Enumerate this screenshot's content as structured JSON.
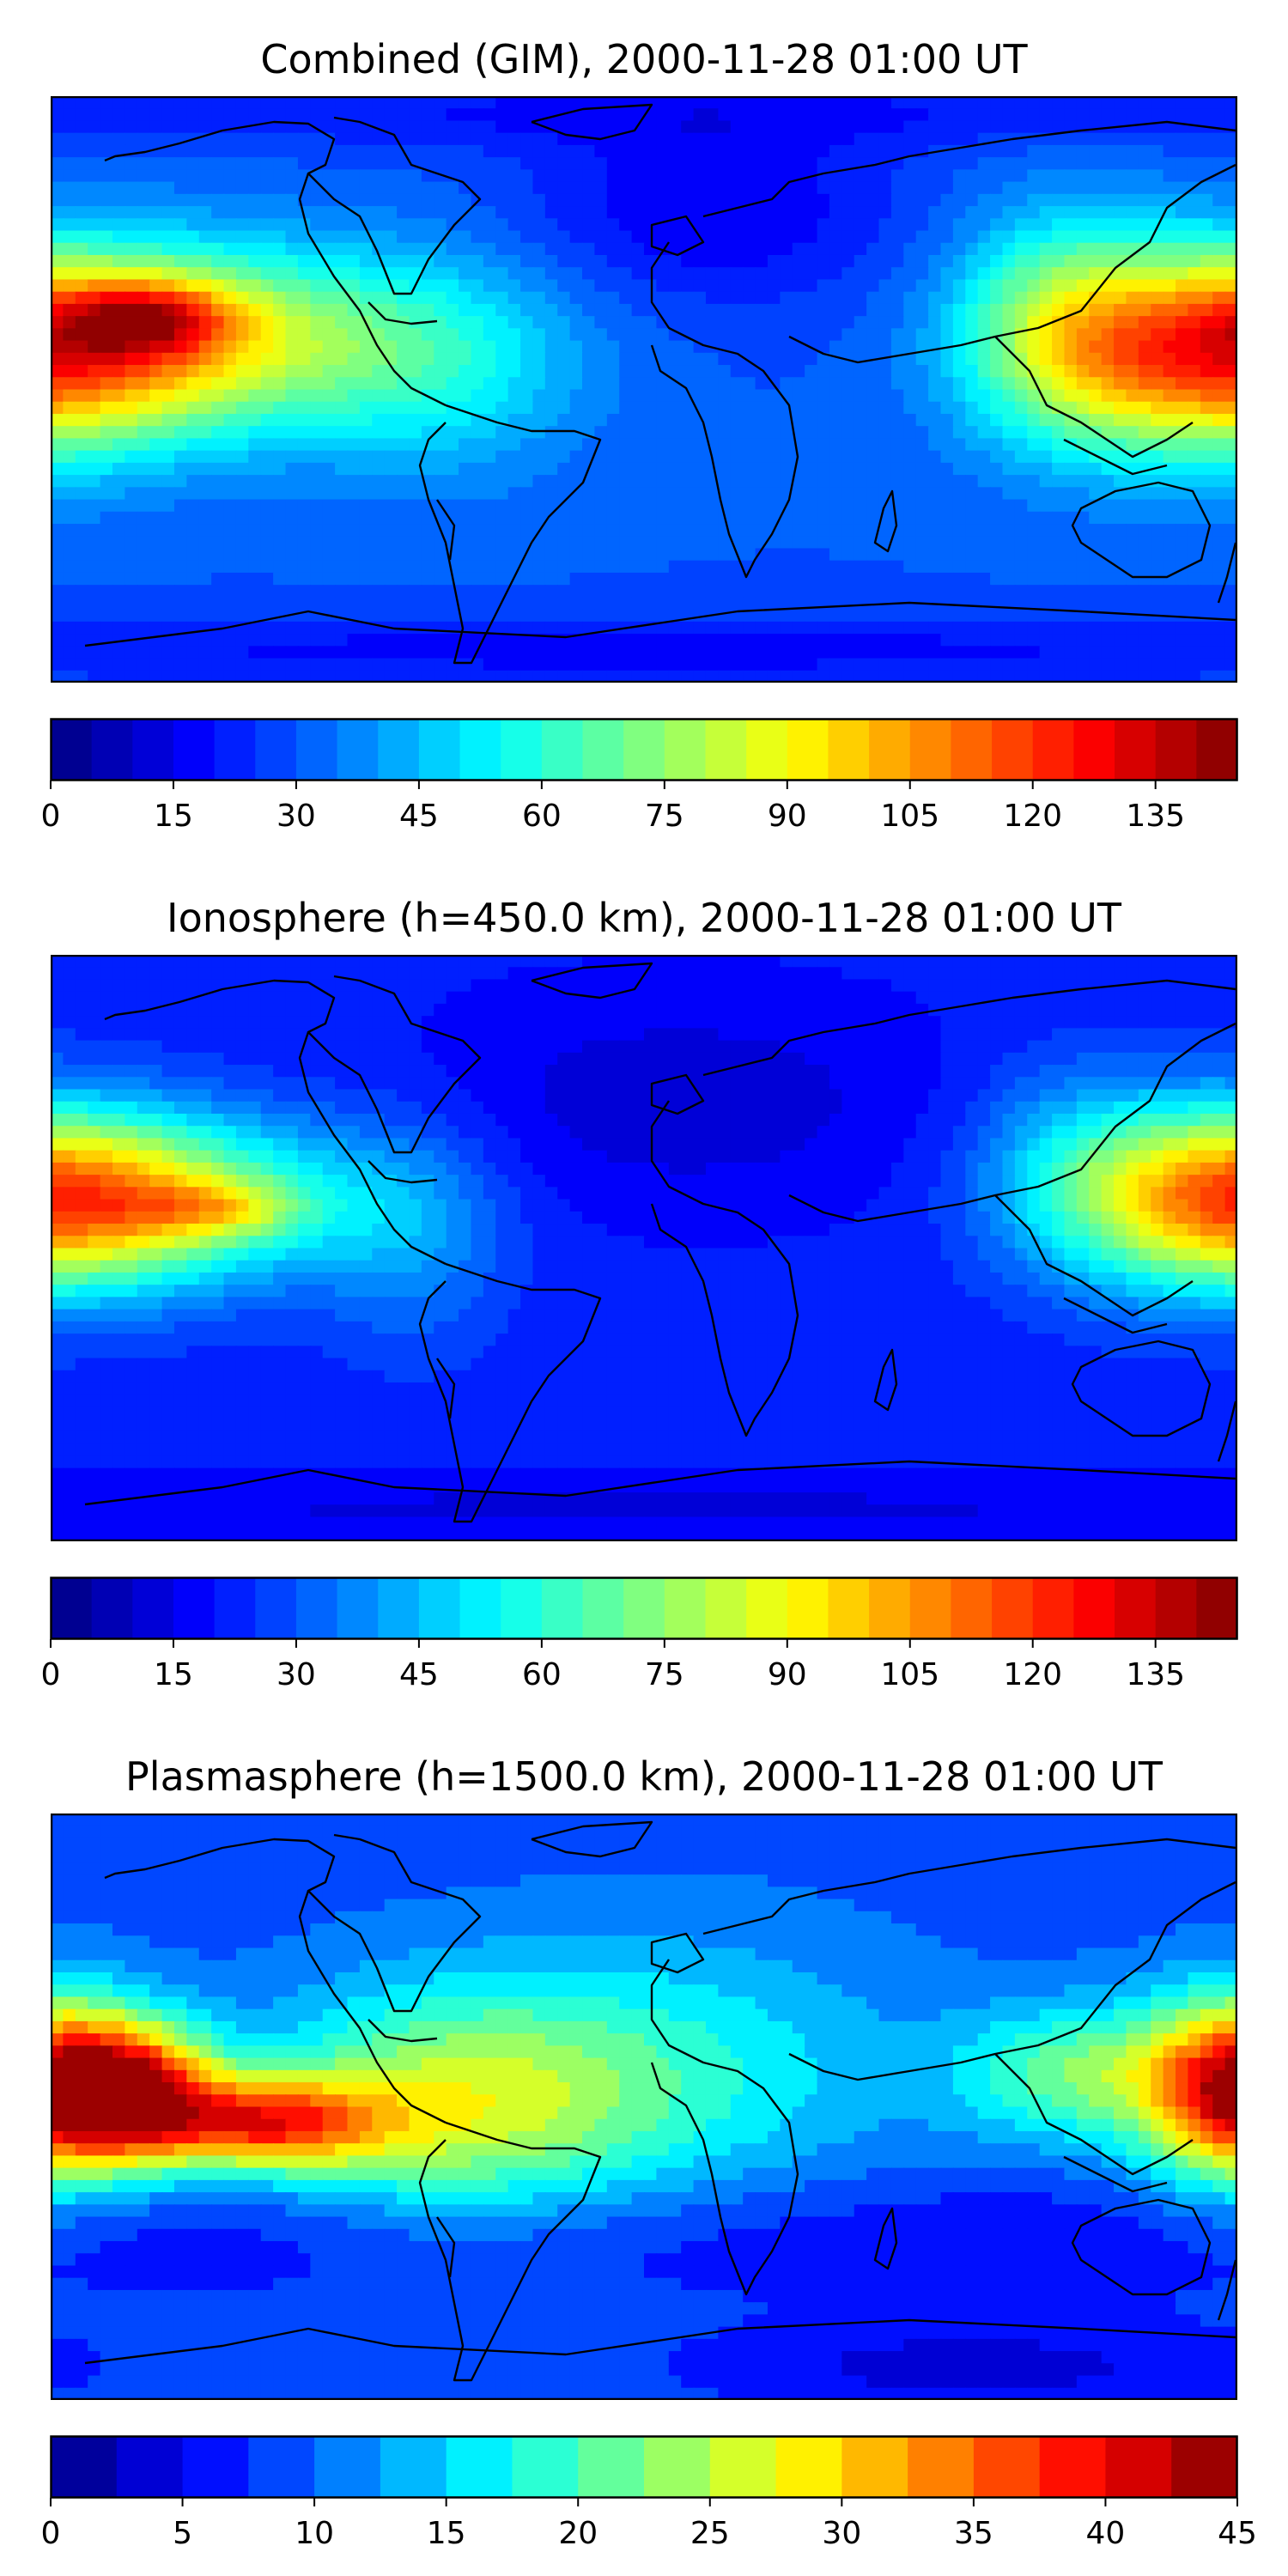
{
  "figure": {
    "panels": [
      {
        "id": "combined",
        "title": "Combined (GIM), 2000-11-28 01:00 UT",
        "colorbar": {
          "min": 0,
          "max": 145,
          "levels": 29,
          "colormap": "jet",
          "ticks": [
            "0",
            "15",
            "30",
            "45",
            "60",
            "75",
            "90",
            "105",
            "120",
            "135"
          ],
          "tick_values": [
            0,
            15,
            30,
            45,
            60,
            75,
            90,
            105,
            120,
            135
          ]
        },
        "base_value": 30,
        "blobs": [
          {
            "lon": -140,
            "lat": 15,
            "amp": 55,
            "sx": 55,
            "sy": 20
          },
          {
            "lon": -150,
            "lat": 22,
            "amp": 40,
            "sx": 18,
            "sy": 8
          },
          {
            "lon": -60,
            "lat": 5,
            "amp": 15,
            "sx": 30,
            "sy": 25
          },
          {
            "lon": 170,
            "lat": 10,
            "amp": 60,
            "sx": 35,
            "sy": 22
          },
          {
            "lon": 125,
            "lat": 20,
            "amp": 30,
            "sx": 22,
            "sy": 25
          },
          {
            "lon": 20,
            "lat": 55,
            "amp": -15,
            "sx": 40,
            "sy": 20
          },
          {
            "lon": 0,
            "lat": -80,
            "amp": -12,
            "sx": 200,
            "sy": 8
          },
          {
            "lon": 0,
            "lat": 85,
            "amp": -10,
            "sx": 200,
            "sy": 8
          }
        ]
      },
      {
        "id": "ionosphere",
        "title": "Ionosphere  (h=450.0 km), 2000-11-28 01:00 UT",
        "colorbar": {
          "min": 0,
          "max": 145,
          "levels": 29,
          "colormap": "jet",
          "ticks": [
            "0",
            "15",
            "30",
            "45",
            "60",
            "75",
            "90",
            "105",
            "120",
            "135"
          ],
          "tick_values": [
            0,
            15,
            30,
            45,
            60,
            75,
            90,
            105,
            120,
            135
          ]
        },
        "base_value": 22,
        "blobs": [
          {
            "lon": -150,
            "lat": 15,
            "amp": 55,
            "sx": 45,
            "sy": 18
          },
          {
            "lon": -130,
            "lat": 12,
            "amp": 25,
            "sx": 18,
            "sy": 6
          },
          {
            "lon": 175,
            "lat": 15,
            "amp": 55,
            "sx": 30,
            "sy": 20
          },
          {
            "lon": 130,
            "lat": 25,
            "amp": 20,
            "sx": 22,
            "sy": 22
          },
          {
            "lon": -70,
            "lat": 5,
            "amp": 15,
            "sx": 20,
            "sy": 25
          },
          {
            "lon": 10,
            "lat": 45,
            "amp": -10,
            "sx": 60,
            "sy": 25
          },
          {
            "lon": 0,
            "lat": -80,
            "amp": -8,
            "sx": 200,
            "sy": 8
          }
        ]
      },
      {
        "id": "plasmasphere",
        "title": "Plasmasphere (h=1500.0 km), 2000-11-28 01:00 UT",
        "colorbar": {
          "min": 0,
          "max": 45,
          "levels": 18,
          "colormap": "jet",
          "ticks": [
            "0",
            "5",
            "10",
            "15",
            "20",
            "25",
            "30",
            "35",
            "40",
            "45"
          ],
          "tick_values": [
            0,
            5,
            10,
            15,
            20,
            25,
            30,
            35,
            40,
            45
          ]
        },
        "base_value": 9,
        "blobs": [
          {
            "lon": -155,
            "lat": 5,
            "amp": 27,
            "sx": 18,
            "sy": 15
          },
          {
            "lon": -115,
            "lat": -5,
            "amp": 24,
            "sx": 25,
            "sy": 10
          },
          {
            "lon": -60,
            "lat": 0,
            "amp": 15,
            "sx": 40,
            "sy": 25
          },
          {
            "lon": 178,
            "lat": 5,
            "amp": 28,
            "sx": 20,
            "sy": 20
          },
          {
            "lon": 130,
            "lat": 10,
            "amp": 12,
            "sx": 25,
            "sy": 15
          },
          {
            "lon": 10,
            "lat": 10,
            "amp": 8,
            "sx": 50,
            "sy": 30
          },
          {
            "lon": 0,
            "lat": -40,
            "amp": -4,
            "sx": 200,
            "sy": 15
          },
          {
            "lon": 100,
            "lat": -80,
            "amp": -5,
            "sx": 60,
            "sy": 10
          }
        ]
      }
    ]
  },
  "colors": {
    "coastline": "#000000",
    "frame": "#000000",
    "background": "#ffffff"
  }
}
